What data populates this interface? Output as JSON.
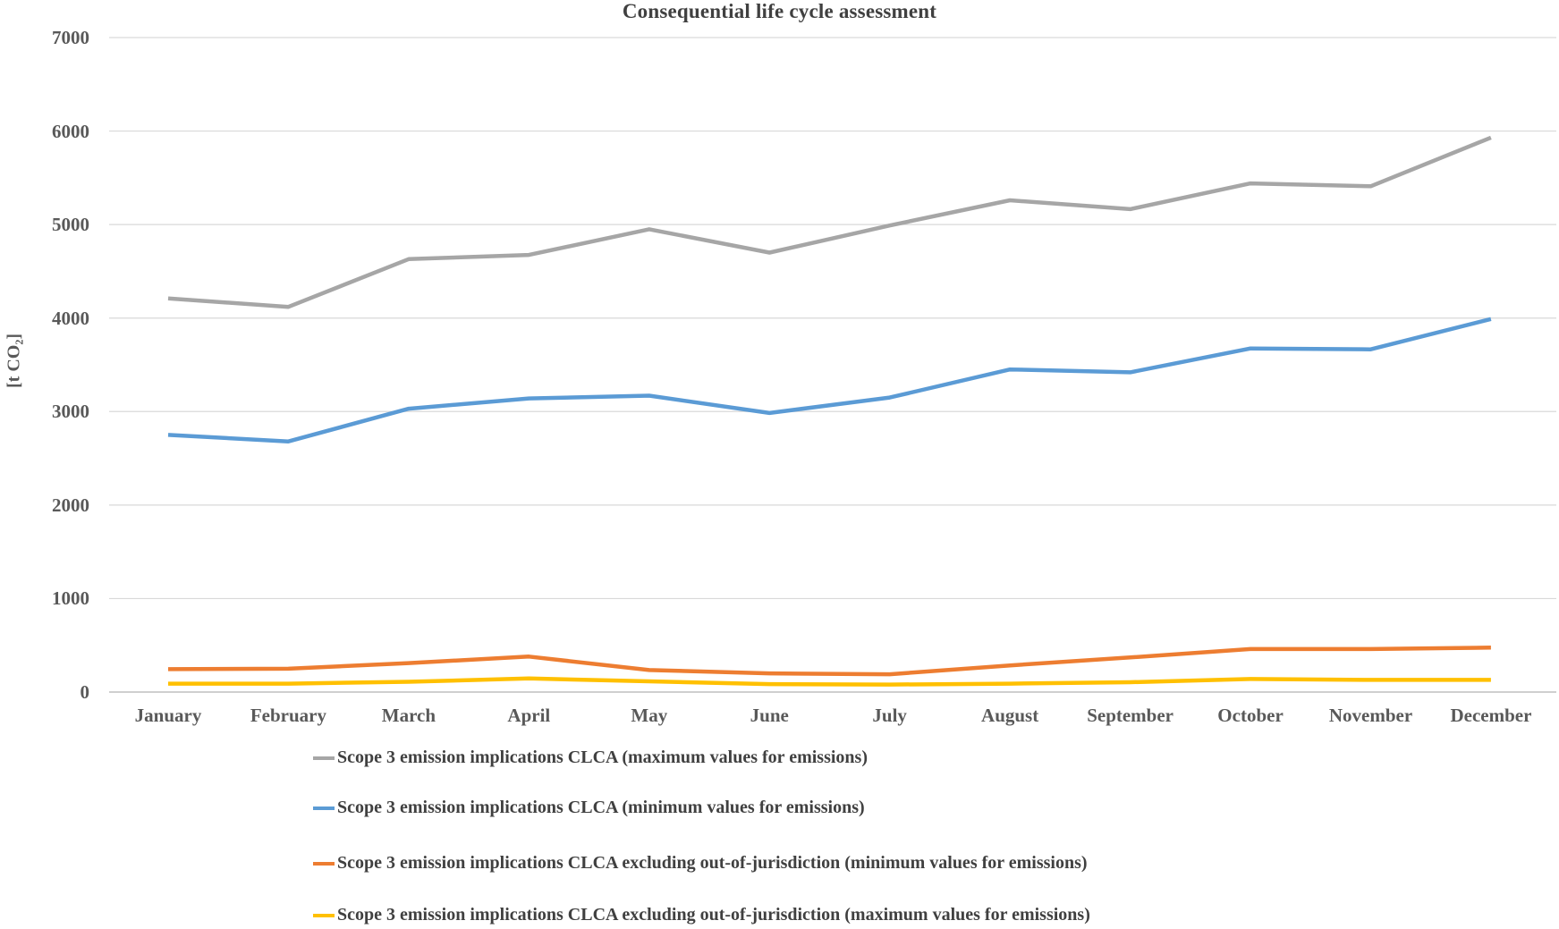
{
  "title": "Consequential life cycle assessment",
  "y_axis": {
    "label": "[t CO₂]",
    "tick_labels": [
      "0",
      "1000",
      "2000",
      "3000",
      "4000",
      "5000",
      "6000",
      "7000"
    ]
  },
  "chart_data": {
    "type": "line",
    "title": "Consequential life cycle assessment",
    "xlabel": "",
    "ylabel": "[t CO₂]",
    "ylim": [
      0,
      7000
    ],
    "yticks": [
      0,
      1000,
      2000,
      3000,
      4000,
      5000,
      6000,
      7000
    ],
    "grid": true,
    "legend_position": "bottom-left",
    "categories": [
      "January",
      "February",
      "March",
      "April",
      "May",
      "June",
      "July",
      "August",
      "September",
      "October",
      "November",
      "December"
    ],
    "series": [
      {
        "id": "clca-max",
        "name": "Scope 3 emission implications CLCA (maximum values for emissions)",
        "color": "#A6A6A6",
        "values": [
          4210,
          4120,
          4630,
          4675,
          4950,
          4700,
          4990,
          5260,
          5165,
          5440,
          5410,
          5930
        ]
      },
      {
        "id": "clca-min",
        "name": "Scope 3 emission implications CLCA (minimum values for emissions)",
        "color": "#5B9BD5",
        "values": [
          2750,
          2680,
          3030,
          3140,
          3170,
          2985,
          3150,
          3450,
          3420,
          3675,
          3665,
          3990
        ]
      },
      {
        "id": "clca-excl-jurisdiction-min",
        "name": "Scope 3 emission implications CLCA excluding out-of-jurisdiction (minimum values for emissions)",
        "color": "#ED7D31",
        "values": [
          245,
          250,
          310,
          380,
          235,
          200,
          190,
          285,
          370,
          460,
          460,
          475
        ]
      },
      {
        "id": "clca-excl-jurisdiction-max",
        "name": "Scope 3 emission implications CLCA excluding out-of-jurisdiction (maximum values for emissions)",
        "color": "#FFC000",
        "values": [
          90,
          90,
          110,
          145,
          115,
          85,
          80,
          90,
          105,
          140,
          130,
          130
        ]
      }
    ],
    "colors": {
      "gridline": "#D9D9D9",
      "axis_line": "#BFBFBF",
      "title_text": "#404040",
      "tick_text": "#595959"
    }
  }
}
